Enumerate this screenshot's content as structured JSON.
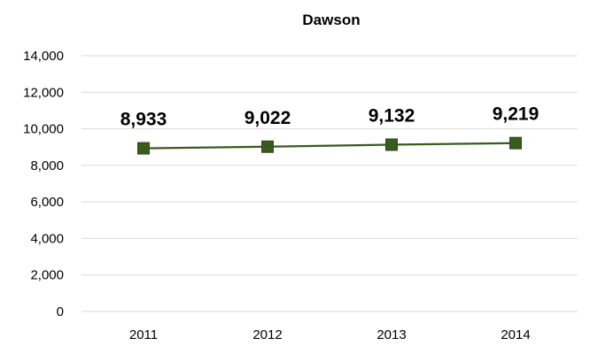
{
  "chart_data": {
    "type": "line",
    "title": "Dawson",
    "xlabel": "",
    "ylabel": "",
    "categories": [
      "2011",
      "2012",
      "2013",
      "2014"
    ],
    "series": [
      {
        "values": [
          8933,
          9022,
          9132,
          9219
        ],
        "color": "#3a5a1e"
      }
    ],
    "data_labels": [
      "8,933",
      "9,022",
      "9,132",
      "9,219"
    ],
    "ylim": [
      0,
      14000
    ],
    "y_ticks": [
      "0",
      "2,000",
      "4,000",
      "6,000",
      "8,000",
      "10,000",
      "12,000",
      "14,000"
    ],
    "grid": true,
    "grid_color": "#d9d9d9",
    "marker": "square",
    "legend": "none"
  }
}
